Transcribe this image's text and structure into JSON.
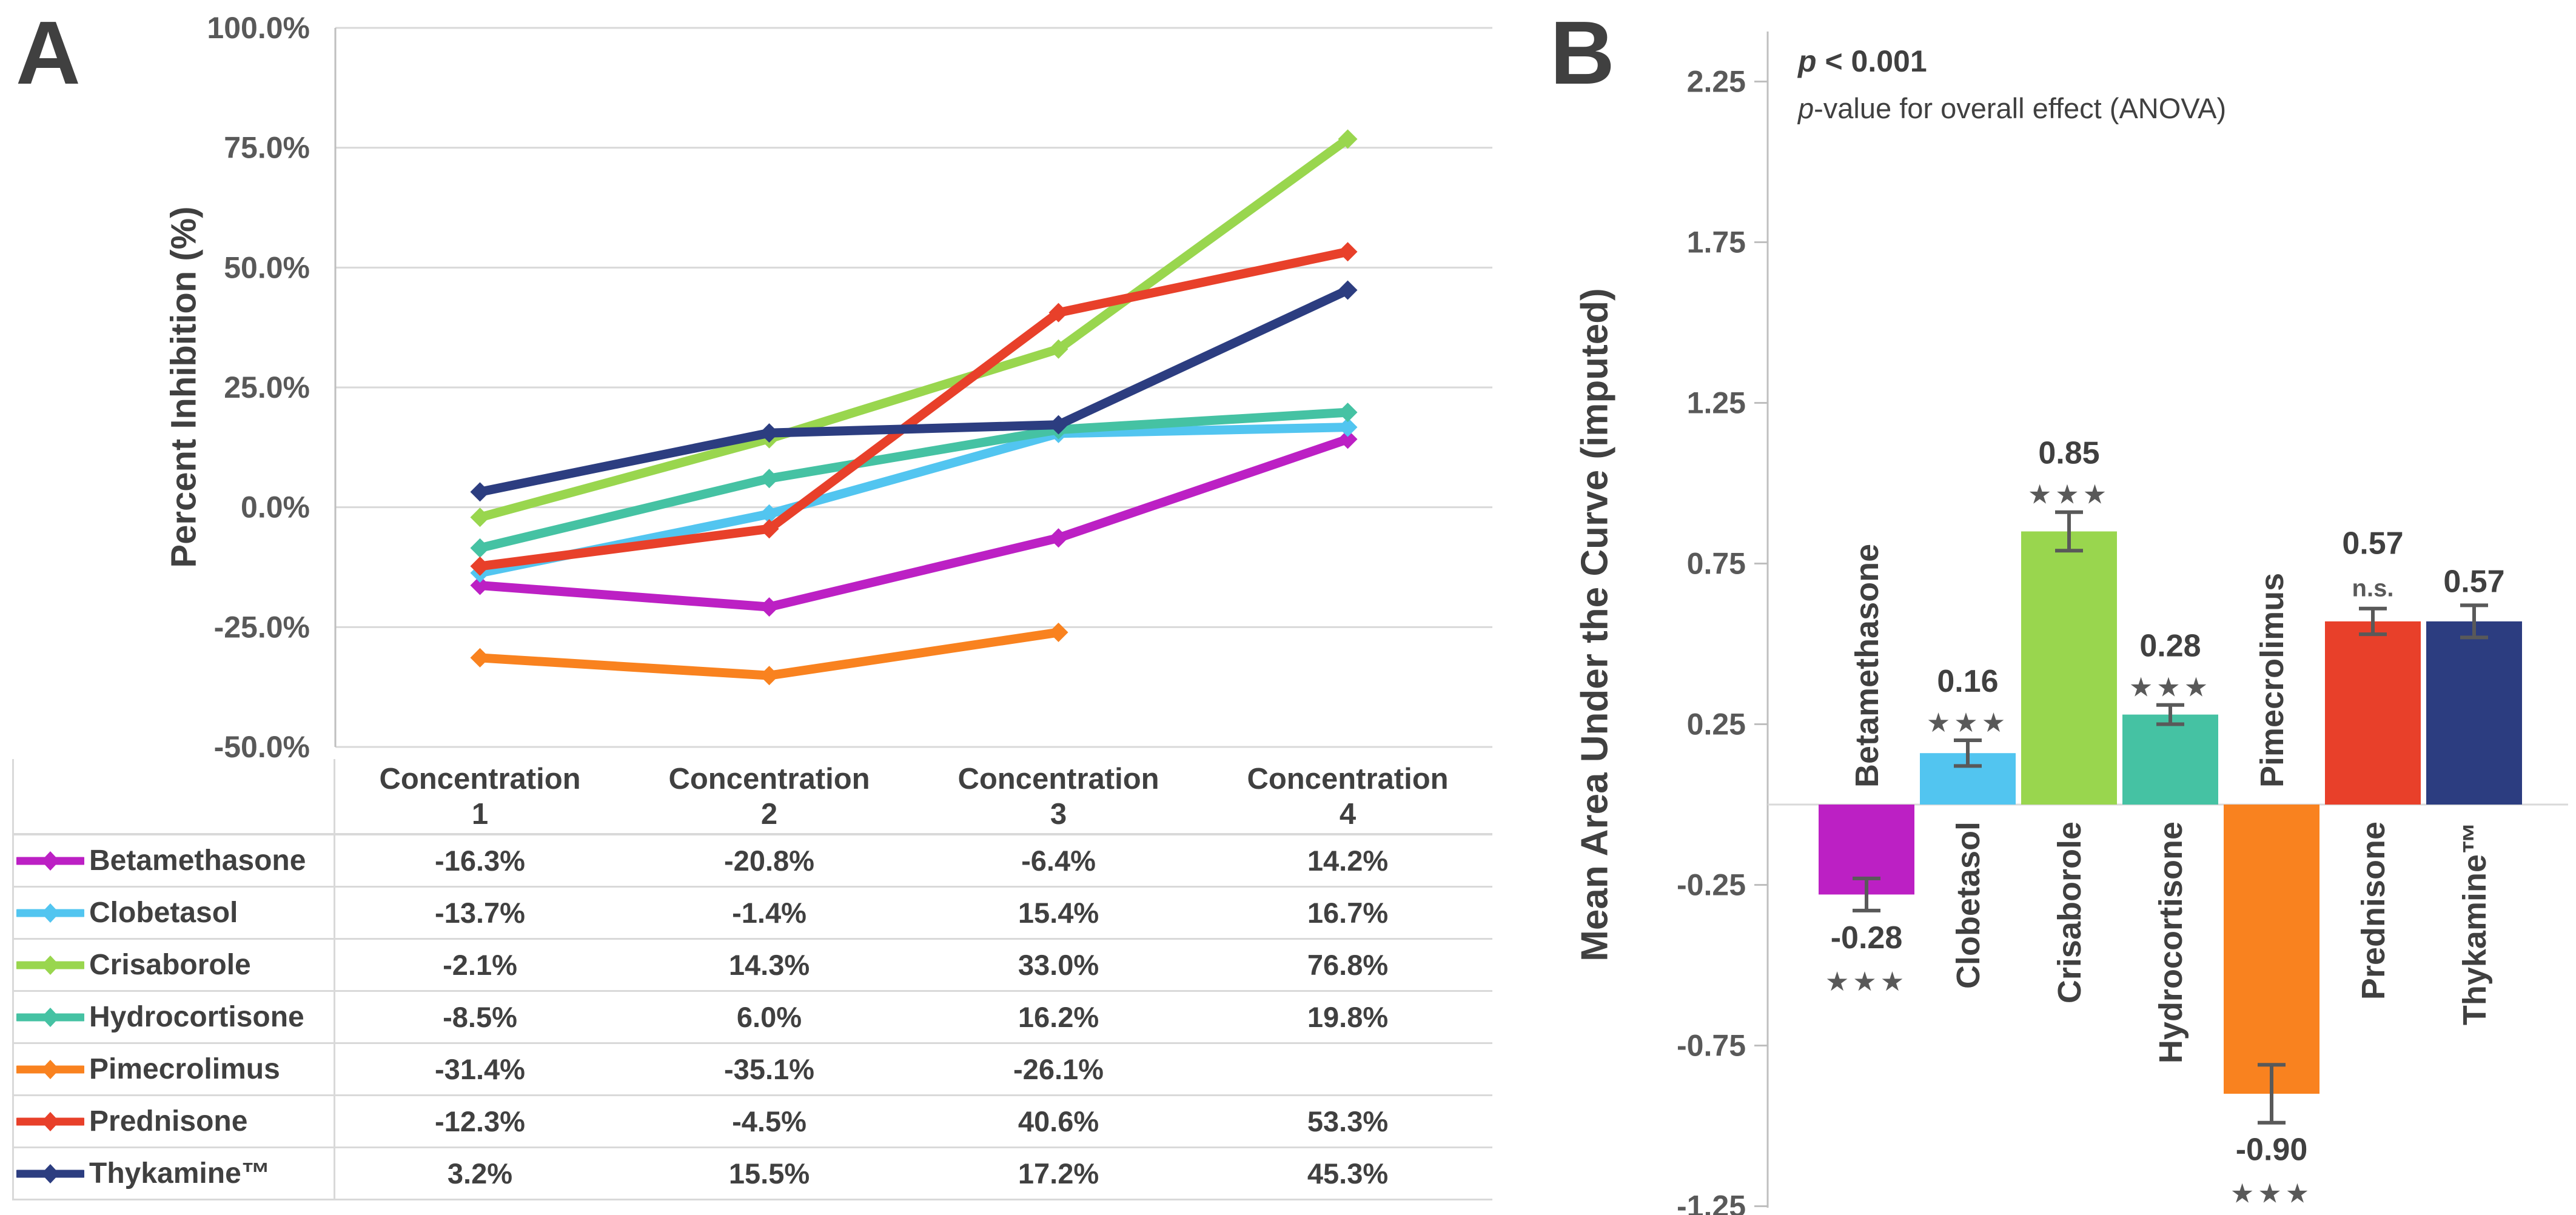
{
  "colors": {
    "grid": "#D9D9D9",
    "axis": "#BFBFBF",
    "tick_text": "#595959",
    "dark_text": "#404040",
    "error_bar": "#595959"
  },
  "panel_a": {
    "panel_label": "A",
    "y_axis_title": "Percent Inhibition (%)",
    "chart_data": {
      "type": "line",
      "title": "",
      "xlabel": "",
      "ylabel": "Percent Inhibition (%)",
      "ylim": [
        -50,
        100
      ],
      "grid": "horizontal",
      "legend_position": "table-left-column",
      "y_ticks": [
        {
          "label": "100.0%",
          "value": 100
        },
        {
          "label": "75.0%",
          "value": 75
        },
        {
          "label": "50.0%",
          "value": 50
        },
        {
          "label": "25.0%",
          "value": 25
        },
        {
          "label": "0.0%",
          "value": 0
        },
        {
          "label": "-25.0%",
          "value": -25
        },
        {
          "label": "-50.0%",
          "value": -50
        }
      ],
      "categories": [
        "Concentration 1",
        "Concentration 2",
        "Concentration 3",
        "Concentration 4"
      ],
      "series": [
        {
          "name": "Betamethasone",
          "color": "#BC20C4",
          "values": [
            -16.3,
            -20.8,
            -6.4,
            14.2
          ]
        },
        {
          "name": "Clobetasol",
          "color": "#52C5F0",
          "values": [
            -13.7,
            -1.4,
            15.4,
            16.7
          ]
        },
        {
          "name": "Crisaborole",
          "color": "#99D64E",
          "values": [
            -2.1,
            14.3,
            33.0,
            76.8
          ]
        },
        {
          "name": "Hydrocortisone",
          "color": "#45C2A3",
          "values": [
            -8.5,
            6.0,
            16.2,
            19.8
          ]
        },
        {
          "name": "Pimecrolimus",
          "color": "#F9821F",
          "values": [
            -31.4,
            -35.1,
            -26.1,
            null
          ]
        },
        {
          "name": "Prednisone",
          "color": "#E8402A",
          "values": [
            -12.3,
            -4.5,
            40.6,
            53.3
          ]
        },
        {
          "name": "Thykamine™",
          "color": "#2C3D80",
          "values": [
            3.2,
            15.5,
            17.2,
            45.3
          ]
        }
      ]
    },
    "table": {
      "header_word": "Concentration",
      "header_numbers": [
        "1",
        "2",
        "3",
        "4"
      ],
      "rows": [
        {
          "name": "Betamethasone",
          "values": [
            "-16.3%",
            "-20.8%",
            "-6.4%",
            "14.2%"
          ]
        },
        {
          "name": "Clobetasol",
          "values": [
            "-13.7%",
            "-1.4%",
            "15.4%",
            "16.7%"
          ]
        },
        {
          "name": "Crisaborole",
          "values": [
            "-2.1%",
            "14.3%",
            "33.0%",
            "76.8%"
          ]
        },
        {
          "name": "Hydrocortisone",
          "values": [
            "-8.5%",
            "6.0%",
            "16.2%",
            "19.8%"
          ]
        },
        {
          "name": "Pimecrolimus",
          "values": [
            "-31.4%",
            "-35.1%",
            "-26.1%",
            ""
          ]
        },
        {
          "name": "Prednisone",
          "values": [
            "-12.3%",
            "-4.5%",
            "40.6%",
            "53.3%"
          ]
        },
        {
          "name": "Thykamine™",
          "values": [
            "3.2%",
            "15.5%",
            "17.2%",
            "45.3%"
          ]
        }
      ]
    }
  },
  "panel_b": {
    "panel_label": "B",
    "y_axis_title": "Mean Area Under the Curve (imputed)",
    "annotation": {
      "line1_prefix": "p",
      "line1_rest": " < 0.001",
      "line2_prefix": "p",
      "line2_rest": "-value for overall effect (ANOVA)"
    },
    "chart_data": {
      "type": "bar",
      "title": "",
      "xlabel": "",
      "ylabel": "Mean Area Under the Curve (imputed)",
      "ylim": [
        -1.25,
        2.25
      ],
      "grid": "off",
      "y_ticks": [
        {
          "label": "2.25",
          "value": 2.25
        },
        {
          "label": "1.75",
          "value": 1.75
        },
        {
          "label": "1.25",
          "value": 1.25
        },
        {
          "label": "0.75",
          "value": 0.75
        },
        {
          "label": "0.25",
          "value": 0.25
        },
        {
          "label": "-0.25",
          "value": -0.25
        },
        {
          "label": "-0.75",
          "value": -0.75
        },
        {
          "label": "-1.25",
          "value": -1.25
        }
      ],
      "categories": [
        "Betamethasone",
        "Clobetasol",
        "Crisaborole",
        "Hydrocortisone",
        "Pimecrolimus",
        "Prednisone",
        "Thykamine™"
      ],
      "values": [
        -0.28,
        0.16,
        0.85,
        0.28,
        -0.9,
        0.57,
        0.57
      ],
      "errors": [
        0.05,
        0.04,
        0.06,
        0.03,
        0.09,
        0.04,
        0.05
      ],
      "value_labels": [
        "-0.28",
        "0.16",
        "0.85",
        "0.28",
        "-0.90",
        "0.57",
        "0.57"
      ],
      "significance": [
        "★★★",
        "★★★",
        "★★★",
        "★★★",
        "★★★",
        "n.s.",
        ""
      ],
      "colors": [
        "#BC20C4",
        "#52C5F0",
        "#99D64E",
        "#45C2A3",
        "#F9821F",
        "#E8402A",
        "#2C3D80"
      ]
    }
  }
}
